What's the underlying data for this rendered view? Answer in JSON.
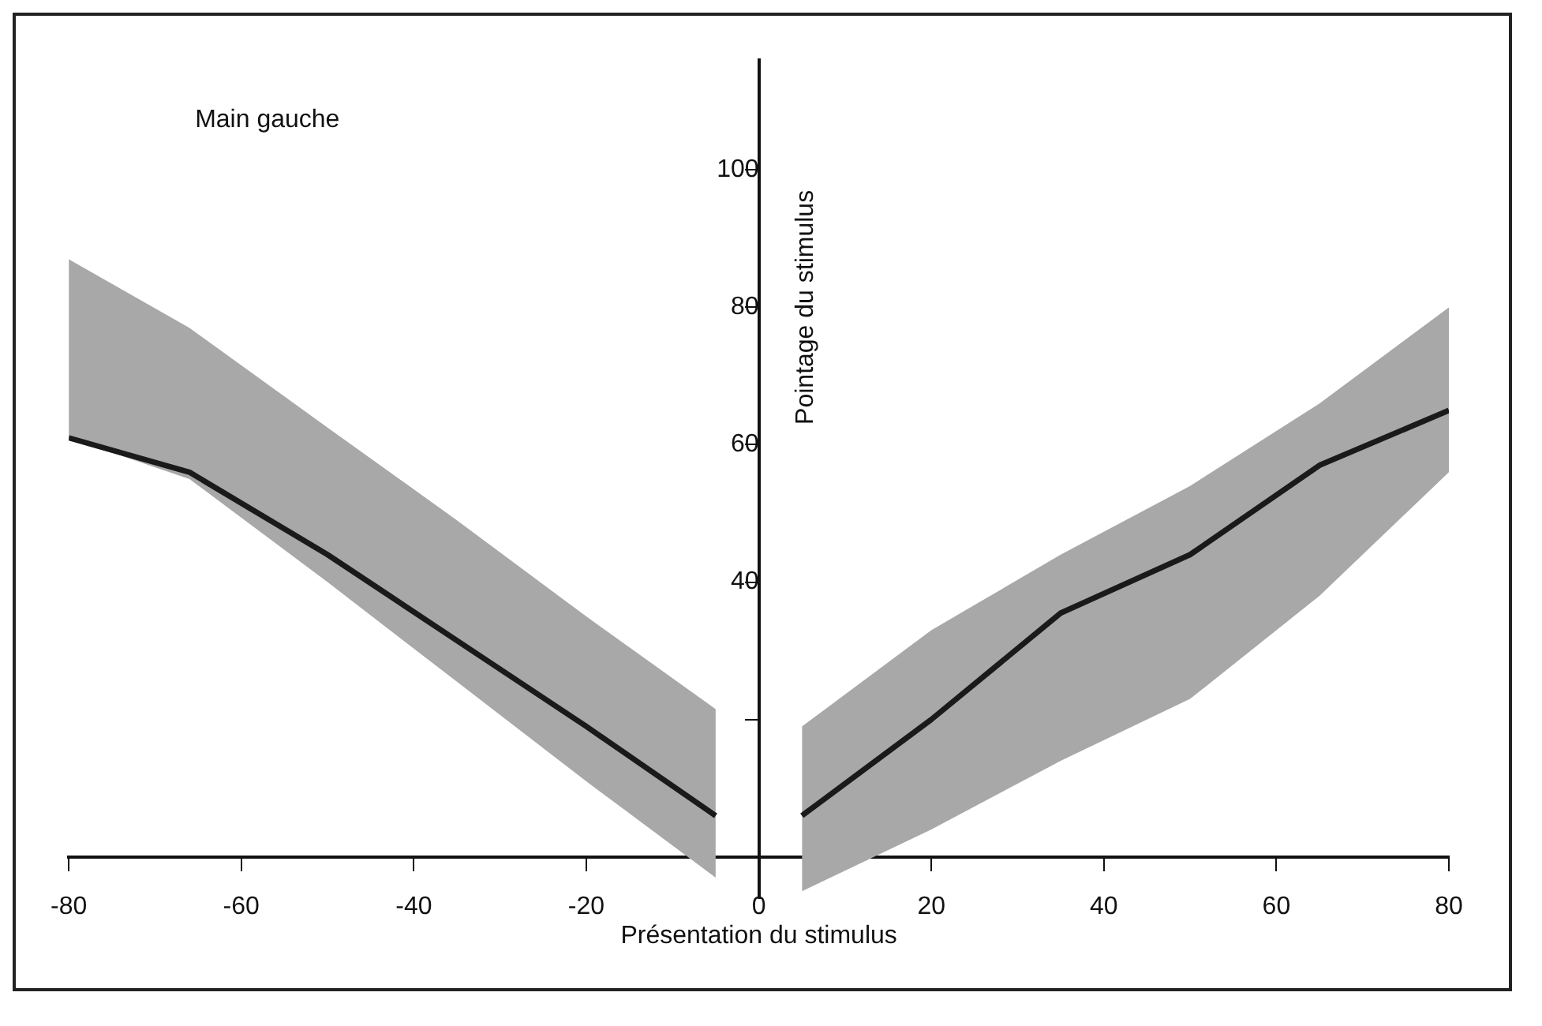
{
  "chart_data": {
    "type": "line",
    "xlabel": "Présentation du stimulus",
    "ylabel": "Pointage du stimulus",
    "annotations": [
      "Main gauche"
    ],
    "series": [
      {
        "color": "#1a1a1a",
        "x": [
          -80,
          -66,
          -50,
          -35,
          -20,
          -5
        ],
        "values": [
          61,
          56,
          44,
          31.5,
          19,
          6
        ],
        "lower": [
          61,
          55,
          40,
          25.5,
          11,
          -3
        ],
        "upper": [
          87,
          77,
          62.5,
          49,
          35,
          21.5
        ]
      },
      {
        "color": "#1a1a1a",
        "x": [
          5,
          20,
          35,
          50,
          65,
          80
        ],
        "values": [
          6,
          20,
          35.5,
          44,
          57,
          65
        ],
        "lower": [
          -5,
          4,
          14,
          23,
          38,
          56
        ],
        "upper": [
          19,
          33,
          44,
          54,
          66,
          80
        ]
      }
    ],
    "xlim": [
      -80,
      80
    ],
    "xticks": [
      -80,
      -60,
      -40,
      -20,
      0,
      20,
      40,
      60,
      80
    ],
    "ylim": [
      -6,
      116
    ],
    "yticks": [
      {
        "value": 20,
        "label": null
      },
      40,
      60,
      80,
      100
    ],
    "grid": false,
    "legend": false,
    "marker": "none",
    "line_style": "solid"
  }
}
